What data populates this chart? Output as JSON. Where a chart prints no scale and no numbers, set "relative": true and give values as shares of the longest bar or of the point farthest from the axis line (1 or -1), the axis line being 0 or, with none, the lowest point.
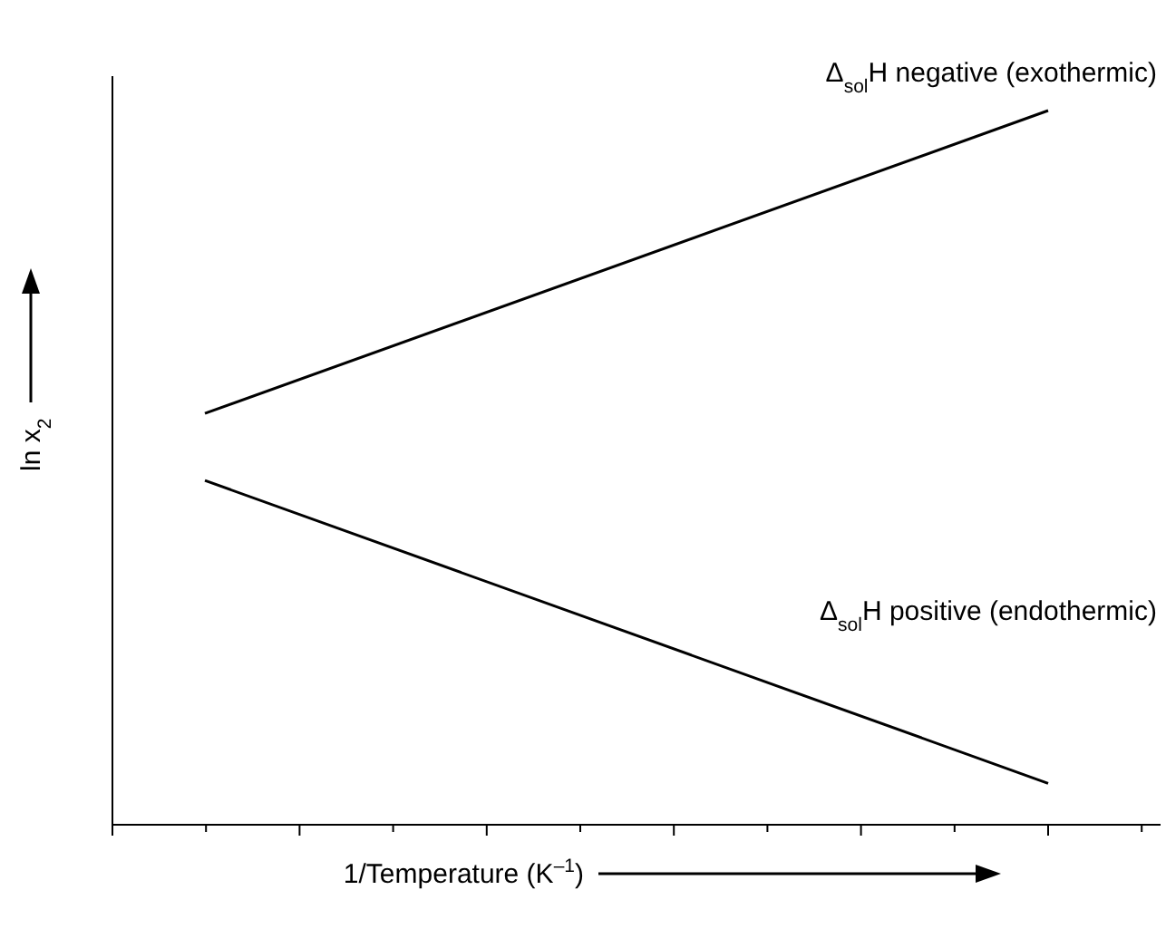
{
  "chart_data": {
    "type": "line",
    "relative": true,
    "categories": [
      null,
      null
    ],
    "xlabel": "1/Temperature (K$^{–1}$)",
    "ylabel": "ln x$_{2}$",
    "series": [
      {
        "name": "Δ$_{sol}$H negative (exothermic)",
        "color": "#000000",
        "values": [
          0.576,
          1
        ]
      },
      {
        "name": "Δ$_{sol}$H positive (endothermic)",
        "color": "#000000",
        "values": [
          0.482,
          0.058
        ]
      }
    ]
  }
}
